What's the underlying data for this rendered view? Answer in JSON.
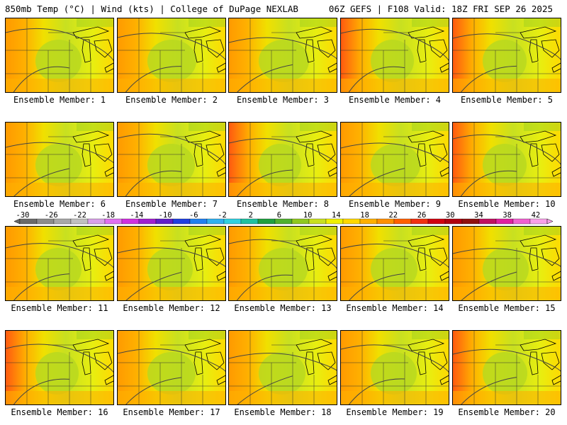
{
  "header": {
    "left": "850mb Temp (°C) | Wind (kts) | College of DuPage NEXLAB",
    "right": "06Z GEFS | F108 Valid: 18Z FRI SEP 26 2025"
  },
  "panels": [
    {
      "label": "Ensemble Member: 1",
      "warmth": 0.55
    },
    {
      "label": "Ensemble Member: 2",
      "warmth": 0.35
    },
    {
      "label": "Ensemble Member: 3",
      "warmth": 0.25
    },
    {
      "label": "Ensemble Member: 4",
      "warmth": 0.75
    },
    {
      "label": "Ensemble Member: 5",
      "warmth": 0.7
    },
    {
      "label": "Ensemble Member: 6",
      "warmth": 0.5
    },
    {
      "label": "Ensemble Member: 7",
      "warmth": 0.45
    },
    {
      "label": "Ensemble Member: 8",
      "warmth": 0.8
    },
    {
      "label": "Ensemble Member: 9",
      "warmth": 0.3
    },
    {
      "label": "Ensemble Member: 10",
      "warmth": 0.7
    },
    {
      "label": "Ensemble Member: 11",
      "warmth": 0.55
    },
    {
      "label": "Ensemble Member: 12",
      "warmth": 0.6
    },
    {
      "label": "Ensemble Member: 13",
      "warmth": 0.35
    },
    {
      "label": "Ensemble Member: 14",
      "warmth": 0.5
    },
    {
      "label": "Ensemble Member: 15",
      "warmth": 0.55
    },
    {
      "label": "Ensemble Member: 16",
      "warmth": 0.75
    },
    {
      "label": "Ensemble Member: 17",
      "warmth": 0.4
    },
    {
      "label": "Ensemble Member: 18",
      "warmth": 0.5
    },
    {
      "label": "Ensemble Member: 19",
      "warmth": 0.55
    },
    {
      "label": "Ensemble Member: 20",
      "warmth": 0.65
    }
  ],
  "colorbar": {
    "ticks": [
      "-30",
      "-26",
      "-22",
      "-18",
      "-14",
      "-10",
      "-6",
      "-2",
      "2",
      "6",
      "10",
      "14",
      "18",
      "22",
      "26",
      "30",
      "34",
      "38",
      "42"
    ],
    "colors": [
      "#6a6a6a",
      "#8c8c8c",
      "#a8a8a8",
      "#c0c0c0",
      "#d8a0e8",
      "#e070f0",
      "#d030e0",
      "#a020d0",
      "#6020c8",
      "#2040e0",
      "#2080f0",
      "#30b0f0",
      "#30d0e0",
      "#20c0a0",
      "#20a040",
      "#50b030",
      "#90c820",
      "#c8e020",
      "#f0f000",
      "#ffd800",
      "#ffb000",
      "#ff9000",
      "#ff6000",
      "#f03010",
      "#d00010",
      "#b00010",
      "#901010",
      "#c01060",
      "#e020a0",
      "#f060d0",
      "#f8a0e8"
    ]
  }
}
